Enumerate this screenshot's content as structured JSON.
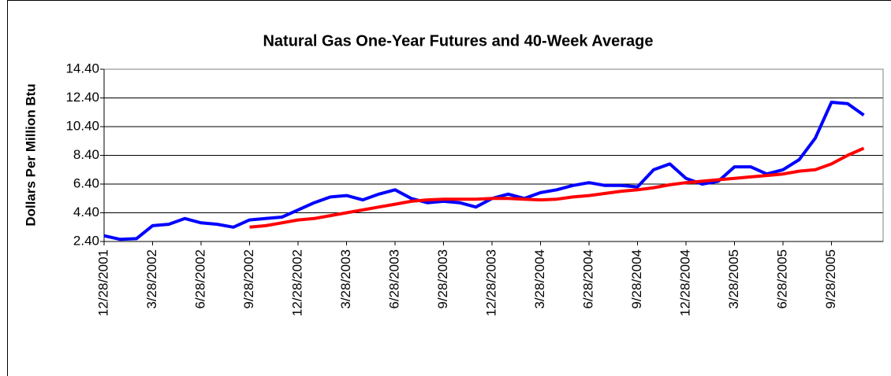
{
  "chart_data": {
    "type": "line",
    "title": "Natural Gas One-Year Futures and 40-Week Average",
    "y_label": "Dollars Per Million Btu",
    "categories": [
      "12/28/2001",
      null,
      null,
      "3/28/2002",
      null,
      null,
      "6/28/2002",
      null,
      null,
      "9/28/2002",
      null,
      null,
      "12/28/2002",
      null,
      null,
      "3/28/2003",
      null,
      null,
      "6/28/2003",
      null,
      null,
      "9/28/2003",
      null,
      null,
      "12/28/2003",
      null,
      null,
      "3/28/2004",
      null,
      null,
      "6/28/2004",
      null,
      null,
      "9/28/2004",
      null,
      null,
      "12/28/2004",
      null,
      null,
      "3/28/2005",
      null,
      null,
      "6/28/2005",
      null,
      null,
      "9/28/2005",
      null,
      null
    ],
    "series": [
      {
        "color": "#0000ff",
        "values": [
          2.8,
          2.55,
          2.6,
          3.5,
          3.6,
          4.0,
          3.7,
          3.6,
          3.4,
          3.9,
          4.0,
          4.1,
          4.6,
          5.1,
          5.5,
          5.6,
          5.3,
          5.7,
          6.0,
          5.4,
          5.1,
          5.2,
          5.1,
          4.8,
          5.4,
          5.7,
          5.4,
          5.8,
          6.0,
          6.3,
          6.5,
          6.3,
          6.3,
          6.2,
          7.4,
          7.8,
          6.8,
          6.4,
          6.6,
          7.6,
          7.6,
          7.1,
          7.4,
          8.1,
          9.6,
          12.1,
          12.0,
          11.2
        ]
      },
      {
        "color": "#ff0000",
        "values": [
          null,
          null,
          null,
          null,
          null,
          null,
          null,
          null,
          null,
          3.4,
          3.5,
          3.7,
          3.9,
          4.0,
          4.2,
          4.4,
          4.6,
          4.8,
          5.0,
          5.2,
          5.3,
          5.35,
          5.35,
          5.35,
          5.4,
          5.4,
          5.35,
          5.3,
          5.35,
          5.5,
          5.6,
          5.75,
          5.9,
          6.0,
          6.15,
          6.35,
          6.5,
          6.6,
          6.7,
          6.8,
          6.9,
          7.0,
          7.1,
          7.3,
          7.4,
          7.8,
          8.4,
          8.9
        ]
      }
    ],
    "ylim": [
      2.4,
      14.4
    ],
    "yticks": [
      {
        "value": 2.4,
        "label": "2.40"
      },
      {
        "value": 4.4,
        "label": "4.40"
      },
      {
        "value": 6.4,
        "label": "6.40"
      },
      {
        "value": 8.4,
        "label": "8.40"
      },
      {
        "value": 10.4,
        "label": "10.40"
      },
      {
        "value": 12.4,
        "label": "12.40"
      },
      {
        "value": 14.4,
        "label": "14.40"
      }
    ],
    "grid": true
  }
}
